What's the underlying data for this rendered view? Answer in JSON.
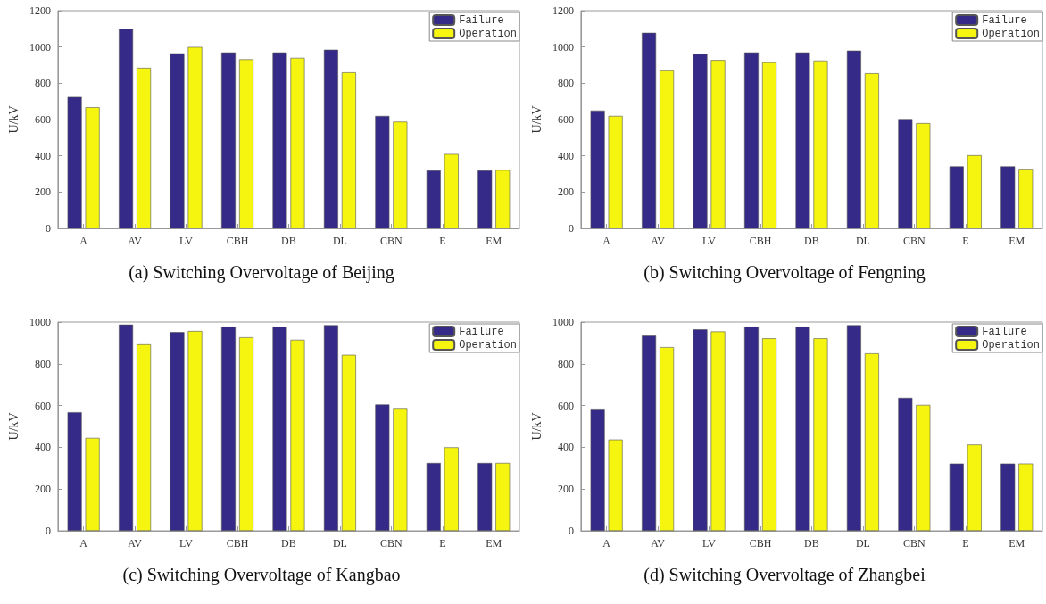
{
  "chart_data": [
    {
      "type": "bar",
      "title": "(a) Switching Overvoltage of Beijing",
      "ylabel": "U/kV",
      "categories": [
        "A",
        "AV",
        "LV",
        "CBH",
        "DB",
        "DL",
        "CBN",
        "E",
        "EM"
      ],
      "ylim": [
        0,
        1200
      ],
      "yticks": [
        0,
        200,
        400,
        600,
        800,
        1000,
        1200
      ],
      "grid": false,
      "legend": "top right",
      "series": [
        {
          "name": "Failure",
          "color": "#352a87",
          "values": [
            725,
            1100,
            965,
            970,
            970,
            985,
            620,
            320,
            320
          ]
        },
        {
          "name": "Operation",
          "color": "#f5f50f",
          "values": [
            668,
            885,
            1000,
            932,
            940,
            860,
            588,
            410,
            322
          ]
        }
      ]
    },
    {
      "type": "bar",
      "title": "(b) Switching Overvoltage of Fengning",
      "ylabel": "U/kV",
      "categories": [
        "A",
        "AV",
        "LV",
        "CBH",
        "DB",
        "DL",
        "CBN",
        "E",
        "EM"
      ],
      "ylim": [
        0,
        1200
      ],
      "yticks": [
        0,
        200,
        400,
        600,
        800,
        1000,
        1200
      ],
      "grid": false,
      "legend": "top right",
      "series": [
        {
          "name": "Failure",
          "color": "#352a87",
          "values": [
            650,
            1078,
            962,
            970,
            970,
            980,
            603,
            342,
            342
          ]
        },
        {
          "name": "Operation",
          "color": "#f5f50f",
          "values": [
            620,
            870,
            928,
            915,
            925,
            855,
            580,
            403,
            328
          ]
        }
      ]
    },
    {
      "type": "bar",
      "title": "(c) Switching Overvoltage of Kangbao",
      "ylabel": "U/kV",
      "categories": [
        "A",
        "AV",
        "LV",
        "CBH",
        "DB",
        "DL",
        "CBN",
        "E",
        "EM"
      ],
      "ylim": [
        0,
        1000
      ],
      "yticks": [
        0,
        200,
        400,
        600,
        800,
        1000
      ],
      "grid": false,
      "legend": "top right",
      "series": [
        {
          "name": "Failure",
          "color": "#352a87",
          "values": [
            568,
            988,
            952,
            978,
            978,
            985,
            605,
            325,
            325
          ]
        },
        {
          "name": "Operation",
          "color": "#f5f50f",
          "values": [
            445,
            893,
            957,
            927,
            915,
            843,
            588,
            400,
            325
          ]
        }
      ]
    },
    {
      "type": "bar",
      "title": "(d) Switching Overvoltage of Zhangbei",
      "ylabel": "U/kV",
      "categories": [
        "A",
        "AV",
        "LV",
        "CBH",
        "DB",
        "DL",
        "CBN",
        "E",
        "EM"
      ],
      "ylim": [
        0,
        1000
      ],
      "yticks": [
        0,
        200,
        400,
        600,
        800,
        1000
      ],
      "grid": false,
      "legend": "top right",
      "series": [
        {
          "name": "Failure",
          "color": "#352a87",
          "values": [
            585,
            935,
            965,
            978,
            978,
            985,
            637,
            322,
            322
          ]
        },
        {
          "name": "Operation",
          "color": "#f5f50f",
          "values": [
            437,
            880,
            955,
            922,
            922,
            850,
            603,
            413,
            322
          ]
        }
      ]
    }
  ]
}
